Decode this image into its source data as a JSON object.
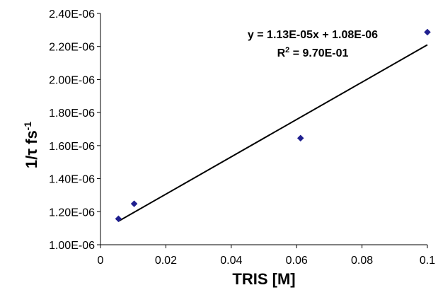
{
  "chart_data": {
    "type": "scatter",
    "xlabel": "TRIS [M]",
    "ylabel": "1/τ fs",
    "ylabel_exponent": "-1",
    "xlim": [
      0,
      0.1
    ],
    "ylim": [
      1e-06,
      2.4e-06
    ],
    "x_ticks": [
      "0",
      "0.02",
      "0.04",
      "0.06",
      "0.08",
      "0.1"
    ],
    "y_ticks": [
      "1.00E-06",
      "1.20E-06",
      "1.40E-06",
      "1.60E-06",
      "1.80E-06",
      "2.00E-06",
      "2.20E-06",
      "2.40E-06"
    ],
    "grid": false,
    "marker": "diamond",
    "colors": {
      "points": "#1f1f8f",
      "trendline": "#000000"
    },
    "points": [
      {
        "x": 0.0055,
        "y": 1.157e-06
      },
      {
        "x": 0.0103,
        "y": 1.248e-06
      },
      {
        "x": 0.0612,
        "y": 1.645e-06
      },
      {
        "x": 0.1,
        "y": 2.287e-06
      }
    ],
    "trendline": {
      "slope": 1.13e-05,
      "intercept": 1.08e-06,
      "x_range": [
        0.0055,
        0.1
      ],
      "equation": "y = 1.13E-05x + 1.08E-06",
      "r2_prefix": "R",
      "r2_sup": "2",
      "r2_value": " = 9.70E-01"
    }
  }
}
